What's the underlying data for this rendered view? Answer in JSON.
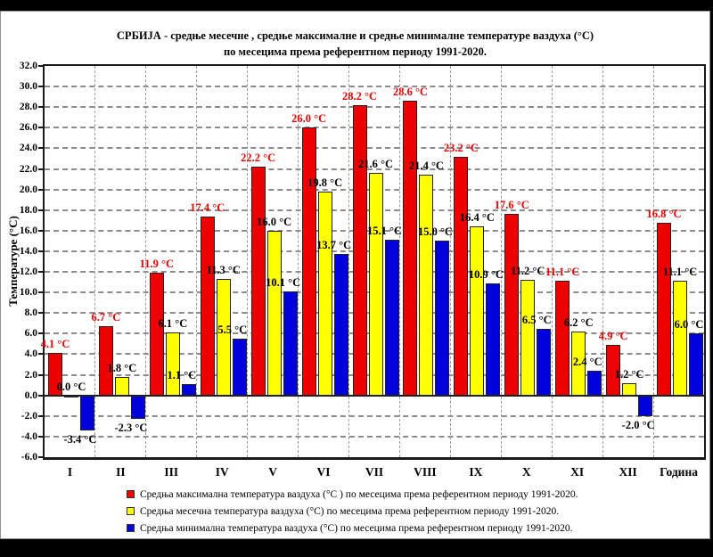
{
  "title": {
    "line1": "СРБИЈА - средње месечне , средње максималне и средње минималне температуре ваздуха (°С)",
    "line2": "по  месецима према  референтном периоду 1991-2020."
  },
  "chart_data": {
    "type": "bar",
    "categories": [
      "I",
      "II",
      "III",
      "IV",
      "V",
      "VI",
      "VII",
      "VIII",
      "IX",
      "X",
      "XI",
      "XII",
      "Година"
    ],
    "series": [
      {
        "name": "Средња максимална температура ваздуха (°С ) по месецима према референтном периоду 1991-2020.",
        "color": "#ee0000",
        "label_color": "#ee0000",
        "values": [
          4.1,
          6.7,
          11.9,
          17.4,
          22.2,
          26.0,
          28.2,
          28.6,
          23.2,
          17.6,
          11.1,
          4.9,
          16.8
        ]
      },
      {
        "name": "Средња месечна температура ваздуха (°С)  по месецима према референтном периоду 1991-2020.",
        "color": "#ffff00",
        "label_color": "#000000",
        "values": [
          0.0,
          1.8,
          6.1,
          11.3,
          16.0,
          19.8,
          21.6,
          21.4,
          16.4,
          11.2,
          6.2,
          1.2,
          11.1
        ]
      },
      {
        "name": "Средња минимална температура ваздуха  (°С) по месецима према референтном периоду 1991-2020.",
        "color": "#0000dd",
        "label_color": "#000000",
        "values": [
          -3.4,
          -2.3,
          1.1,
          5.5,
          10.1,
          13.7,
          15.1,
          15.0,
          10.9,
          6.5,
          2.4,
          -2.0,
          6.0
        ]
      }
    ],
    "ylabel": "Температуре (°С)",
    "unit": "°С",
    "ylim": [
      -6.0,
      32.0
    ],
    "ytick_step": 2.0,
    "grid": "dashed",
    "legend_position": "bottom"
  }
}
